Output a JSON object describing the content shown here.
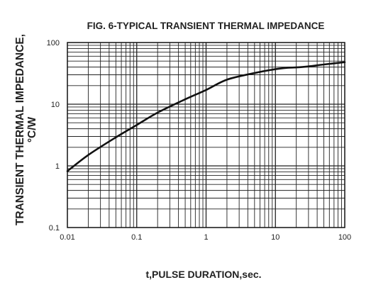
{
  "chart_data": {
    "type": "line",
    "title": "FIG. 6-TYPICAL TRANSIENT THERMAL IMPEDANCE",
    "xlabel": "t,PULSE DURATION,sec.",
    "ylabel_lines": [
      "TRANSIENT THERMAL IMPEDANCE,",
      "°C/W"
    ],
    "x_scale": "log",
    "y_scale": "log",
    "xlim": [
      0.01,
      100
    ],
    "ylim": [
      0.1,
      100
    ],
    "x_ticks": [
      {
        "value": 0.01,
        "label": "0.01"
      },
      {
        "value": 0.1,
        "label": "0.1"
      },
      {
        "value": 1,
        "label": "1"
      },
      {
        "value": 10,
        "label": "10"
      },
      {
        "value": 100,
        "label": "100"
      }
    ],
    "y_ticks": [
      {
        "value": 0.1,
        "label": "0.1"
      },
      {
        "value": 1,
        "label": "1"
      },
      {
        "value": 10,
        "label": "10"
      },
      {
        "value": 100,
        "label": "100"
      }
    ],
    "grid": true,
    "series": [
      {
        "color": "#111111",
        "x": [
          0.01,
          0.02,
          0.05,
          0.1,
          0.2,
          0.5,
          1,
          2,
          5,
          10,
          15,
          20,
          30,
          50,
          100
        ],
        "y": [
          0.82,
          1.5,
          2.9,
          4.6,
          7.3,
          12,
          17,
          25,
          32,
          37,
          39,
          39.5,
          41,
          44,
          48
        ]
      }
    ]
  }
}
